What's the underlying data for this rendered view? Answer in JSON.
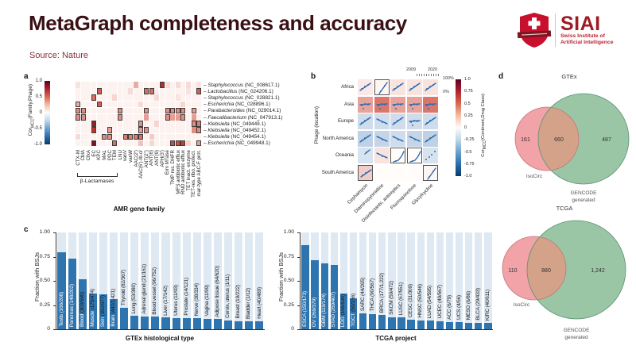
{
  "header": {
    "title": "MetaGraph completeness and accuracy",
    "source": "Source: Nature"
  },
  "logo": {
    "brand": "SIAI",
    "subtitle_line1": "Swiss Institute of",
    "subtitle_line2": "Artificial Intelligence"
  },
  "panels": {
    "a": "a",
    "b": "b",
    "c": "c",
    "d": "d"
  },
  "labels": {
    "cor_pre": "Cor",
    "cor_sub": "MCC",
    "cor_a_post": "(Family,Phage)",
    "cor_b_post": "(Continent,Drug Class)"
  },
  "panel_a": {
    "group_label": "β-Lactamases",
    "colorbar_ticks": [
      "1.0",
      "0.5",
      "0",
      "-0.5",
      "-1.0"
    ]
  },
  "panel_b": {
    "legend": {
      "x_start": "2009",
      "x_end": "2020",
      "y_top": "100%",
      "y_bottom": "0%"
    },
    "colorbar_ticks": [
      "1.0",
      "0.75",
      "0.5",
      "0.25",
      "0",
      "-0.25",
      "-0.5",
      "-0.75",
      "-1.0"
    ]
  },
  "chart_data": [
    {
      "id": "amr_heatmap",
      "type": "heatmap",
      "xlabel": "AMR gene family",
      "ylabel": "CorMCC(Family,Phage)",
      "value_range": [
        -1,
        1
      ],
      "x_categories": [
        "CTX-M",
        "CblA",
        "CfxA",
        "EC",
        "KPC",
        "MAL",
        "PDC",
        "TEM",
        "LNU",
        "vanV",
        "vanW",
        "AAC(2')",
        "AAC(6')-Ib-cr",
        "ANT(2'')",
        "ANT(6)",
        "ANT(9)",
        "APH(3')",
        "Erm MTase",
        "TMP res. DHFR",
        "MFS antibiotic efflux",
        "RND antibiotic efflux",
        "TET inact. enzyme",
        "TET-res. ribo. protect.",
        "mar-type ABC-F prot."
      ],
      "beta_lactamase_span": 8,
      "rows": [
        {
          "genus": "Staphylococcus",
          "acc": "(NC_008617.1)"
        },
        {
          "genus": "Lactobacillus",
          "acc": "(NC_024206.1)"
        },
        {
          "genus": "Staphylococcus",
          "acc": "(NC_028821.1)"
        },
        {
          "genus": "Escherichia",
          "acc": "(NC_028896.1)"
        },
        {
          "genus": "Parabacteroides",
          "acc": "(NC_029014.1)"
        },
        {
          "genus": "Faecalibacterium",
          "acc": "(NC_047913.1)"
        },
        {
          "genus": "Klebsiella",
          "acc": "(NC_049449.1)"
        },
        {
          "genus": "Klebsiella",
          "acc": "(NC_049452.1)"
        },
        {
          "genus": "Klebsiella",
          "acc": "(NC_049454.1)"
        },
        {
          "genus": "Escherichia",
          "acc": "(NC_049948.1)"
        }
      ],
      "cells": [
        [
          0,
          0,
          0.08,
          0
        ],
        [
          0,
          11,
          0.25,
          0
        ],
        [
          0,
          16,
          0.7,
          1
        ],
        [
          0,
          17,
          0.1,
          0
        ],
        [
          0,
          19,
          0.1,
          0
        ],
        [
          0,
          21,
          0.1,
          0
        ],
        [
          0,
          23,
          0.08,
          0
        ],
        [
          1,
          4,
          0.5,
          1
        ],
        [
          1,
          10,
          0.1,
          0
        ],
        [
          1,
          13,
          0.45,
          1
        ],
        [
          1,
          14,
          0.45,
          1
        ],
        [
          1,
          21,
          0.08,
          0
        ],
        [
          1,
          23,
          0.5,
          1
        ],
        [
          2,
          3,
          0.45,
          1
        ],
        [
          2,
          7,
          0.12,
          0
        ],
        [
          2,
          15,
          0.1,
          0
        ],
        [
          2,
          19,
          0.08,
          0
        ],
        [
          3,
          0,
          0.25,
          1
        ],
        [
          3,
          4,
          0.5,
          1
        ],
        [
          3,
          12,
          0.1,
          0
        ],
        [
          3,
          20,
          0.12,
          0
        ],
        [
          4,
          0,
          0.35,
          1
        ],
        [
          4,
          1,
          0.35,
          1
        ],
        [
          4,
          8,
          0.35,
          1
        ],
        [
          4,
          13,
          0.35,
          1
        ],
        [
          4,
          17,
          0.35,
          1
        ],
        [
          4,
          18,
          0.35,
          1
        ],
        [
          4,
          19,
          0.35,
          1
        ],
        [
          4,
          20,
          0.35,
          1
        ],
        [
          4,
          22,
          0.3,
          1
        ],
        [
          5,
          0,
          0.35,
          1
        ],
        [
          5,
          1,
          0.35,
          1
        ],
        [
          5,
          8,
          0.35,
          1
        ],
        [
          5,
          13,
          0.3,
          0
        ],
        [
          5,
          17,
          0.35,
          1
        ],
        [
          5,
          18,
          0.3,
          0
        ],
        [
          5,
          19,
          0.3,
          0
        ],
        [
          5,
          20,
          0.35,
          1
        ],
        [
          5,
          22,
          0.3,
          0
        ],
        [
          6,
          3,
          0.8,
          1
        ],
        [
          6,
          12,
          0.35,
          1
        ],
        [
          6,
          15,
          0.12,
          0
        ],
        [
          6,
          22,
          0.35,
          1
        ],
        [
          6,
          23,
          0.4,
          1
        ],
        [
          7,
          3,
          0.65,
          1
        ],
        [
          7,
          6,
          0.3,
          1
        ],
        [
          7,
          12,
          0.3,
          1
        ],
        [
          7,
          13,
          0.35,
          1
        ],
        [
          7,
          22,
          0.35,
          0
        ],
        [
          7,
          23,
          0.35,
          1
        ],
        [
          8,
          0,
          0.1,
          0
        ],
        [
          8,
          5,
          0.35,
          1
        ],
        [
          8,
          6,
          0.35,
          1
        ],
        [
          8,
          9,
          0.4,
          1
        ],
        [
          8,
          10,
          0.4,
          1
        ],
        [
          8,
          11,
          0.4,
          1
        ],
        [
          8,
          12,
          0.45,
          1
        ],
        [
          8,
          14,
          0.15,
          0
        ],
        [
          9,
          3,
          0.9,
          1
        ],
        [
          9,
          7,
          0.45,
          1
        ],
        [
          9,
          12,
          0.18,
          0
        ],
        [
          9,
          14,
          0.12,
          0
        ],
        [
          9,
          18,
          0.55,
          1
        ],
        [
          9,
          19,
          0.55,
          1
        ],
        [
          9,
          20,
          0.6,
          1
        ],
        [
          9,
          21,
          0.12,
          0
        ],
        [
          9,
          23,
          0.3,
          1
        ]
      ]
    },
    {
      "id": "phage_location_grid",
      "type": "scatter",
      "ylabel": "Phage (location)",
      "rows": [
        "Africa",
        "Asia",
        "Europe",
        "North America",
        "Oceania",
        "South America"
      ],
      "cols": [
        "Cephamycin",
        "Diaminopyrimidine",
        "Disinfectants, antiseptics",
        "Fluoroquinolone",
        "Glycylcycline"
      ],
      "x_range_labels": [
        "2009",
        "2020"
      ],
      "y_range_labels": [
        "0%",
        "100%"
      ],
      "colorbar_label": "CorMCC(Continent,Drug Class)",
      "cells": [
        [
          [
            0.06,
            "up",
            0
          ],
          [
            0.02,
            "steep-up",
            1
          ],
          [
            0.08,
            "up",
            0
          ],
          [
            0.08,
            "up",
            0
          ],
          [
            0.08,
            "up",
            0
          ]
        ],
        [
          [
            0.28,
            "flat",
            0
          ],
          [
            0.42,
            "flat",
            0
          ],
          [
            0.28,
            "flat",
            0
          ],
          [
            0.28,
            "flat",
            0
          ],
          [
            0.42,
            "flat",
            0
          ]
        ],
        [
          [
            -0.15,
            "up",
            0
          ],
          [
            -0.15,
            "down",
            0
          ],
          [
            -0.15,
            "up",
            0
          ],
          [
            -0.15,
            "flat",
            0
          ],
          [
            -0.15,
            "up",
            0
          ]
        ],
        [
          [
            -0.2,
            "up",
            0
          ],
          [
            -0.18,
            "down",
            0
          ],
          [
            -0.15,
            "down",
            0
          ],
          [
            -0.18,
            "down",
            0
          ],
          [
            -0.2,
            "up",
            0
          ]
        ],
        [
          [
            -0.12,
            "up-short",
            0
          ],
          [
            0.08,
            "down",
            0
          ],
          [
            0,
            "curve-up",
            1
          ],
          [
            0,
            "curve-up",
            1
          ],
          [
            -0.12,
            "dots-up",
            0
          ]
        ],
        [
          [
            0.15,
            "up",
            1
          ],
          [
            0,
            "none",
            0
          ],
          [
            0,
            "none",
            0
          ],
          [
            0,
            "none",
            0
          ],
          [
            0.02,
            "steep-up",
            1
          ]
        ]
      ]
    },
    {
      "id": "gtex_bars",
      "type": "bar",
      "ylabel": "Fraction with BSJs",
      "xlabel": "GTEx histological type",
      "ylim": [
        0,
        1
      ],
      "yticks": [
        "0",
        "0.25",
        "0.50",
        "0.75",
        "1.00"
      ],
      "ytick_vals": [
        0,
        0.25,
        0.5,
        0.75,
        1
      ],
      "categories": [
        "Testis (166/208)",
        "Pancreas (148/202)",
        "Blood (303/590)",
        "Muscle (175/474)",
        "Skin (350/977)",
        "Brain (442/1,421)",
        "Thyroid (82/367)",
        "Lung (53/380)",
        "Adrenal gland (21/161)",
        "Blood vessel (96/752)",
        "Liver (17/142)",
        "Uterus (11/93)",
        "Prostate (14/121)",
        "Nerve (38/334)",
        "Vagina (11/99)",
        "Adipose tissue (64/620)",
        "Cervix, uterus (1/11)",
        "Breast (19/222)",
        "Bladder (1/12)",
        "Heart (40/489)"
      ],
      "values": [
        0.798,
        0.733,
        0.514,
        0.369,
        0.358,
        0.311,
        0.223,
        0.139,
        0.13,
        0.128,
        0.12,
        0.118,
        0.116,
        0.114,
        0.111,
        0.103,
        0.091,
        0.086,
        0.083,
        0.082
      ]
    },
    {
      "id": "tcga_bars",
      "type": "bar",
      "ylabel": "Fraction with BSJs",
      "xlabel": "TCGA project",
      "ylim": [
        0,
        1
      ],
      "yticks": [
        "0",
        "0.25",
        "0.50",
        "0.75",
        "1.00"
      ],
      "ytick_vals": [
        0,
        0.25,
        0.5,
        0.75,
        1
      ],
      "categories": [
        "ESCA (150/173)",
        "OV (269/379)",
        "GBM (119/174)",
        "STAD (269/407)",
        "LGG (195/530)",
        "TGCT (50/156)",
        "SARC (44/265)",
        "THCA (90/567)",
        "BRCA (177/1,222)",
        "SKCM (59/472)",
        "LUSC (67/551)",
        "CESC (31/309)",
        "HNSC (50/546)",
        "LUAD (54/595)",
        "UCEC (49/567)",
        "ACC (6/79)",
        "UCS (4/56)",
        "MESO (6/86)",
        "BLCA (29/433)",
        "KIRC (40/611)"
      ],
      "values": [
        0.867,
        0.71,
        0.684,
        0.661,
        0.368,
        0.321,
        0.166,
        0.159,
        0.145,
        0.125,
        0.122,
        0.1,
        0.092,
        0.091,
        0.086,
        0.076,
        0.071,
        0.07,
        0.067,
        0.065
      ]
    }
  ],
  "venns": [
    {
      "id": "gtex",
      "title": "GTEx",
      "left_label": "IsoCirc",
      "right_label_line1": "GENCODE",
      "right_label_line2": "generated",
      "left_value": "161",
      "overlap_value": "660",
      "right_value": "487"
    },
    {
      "id": "tcga",
      "title": "TCGA",
      "left_label": "IsoCirc",
      "right_label_line1": "GENCODE",
      "right_label_line2": "generated",
      "left_value": "110",
      "overlap_value": "880",
      "right_value": "1,242"
    }
  ],
  "colors": {
    "bar_blue": "#2e75b0",
    "stripe_blue": "#dfe9f3",
    "heat_red": "#a41729",
    "heat_blue": "#2b6cab",
    "venn_pink": "#f1a3a7",
    "venn_green": "#9ac6a6",
    "venn_overlap": "#d3a289",
    "title_maroon": "#3a1014",
    "logo_red": "#c8102e"
  }
}
